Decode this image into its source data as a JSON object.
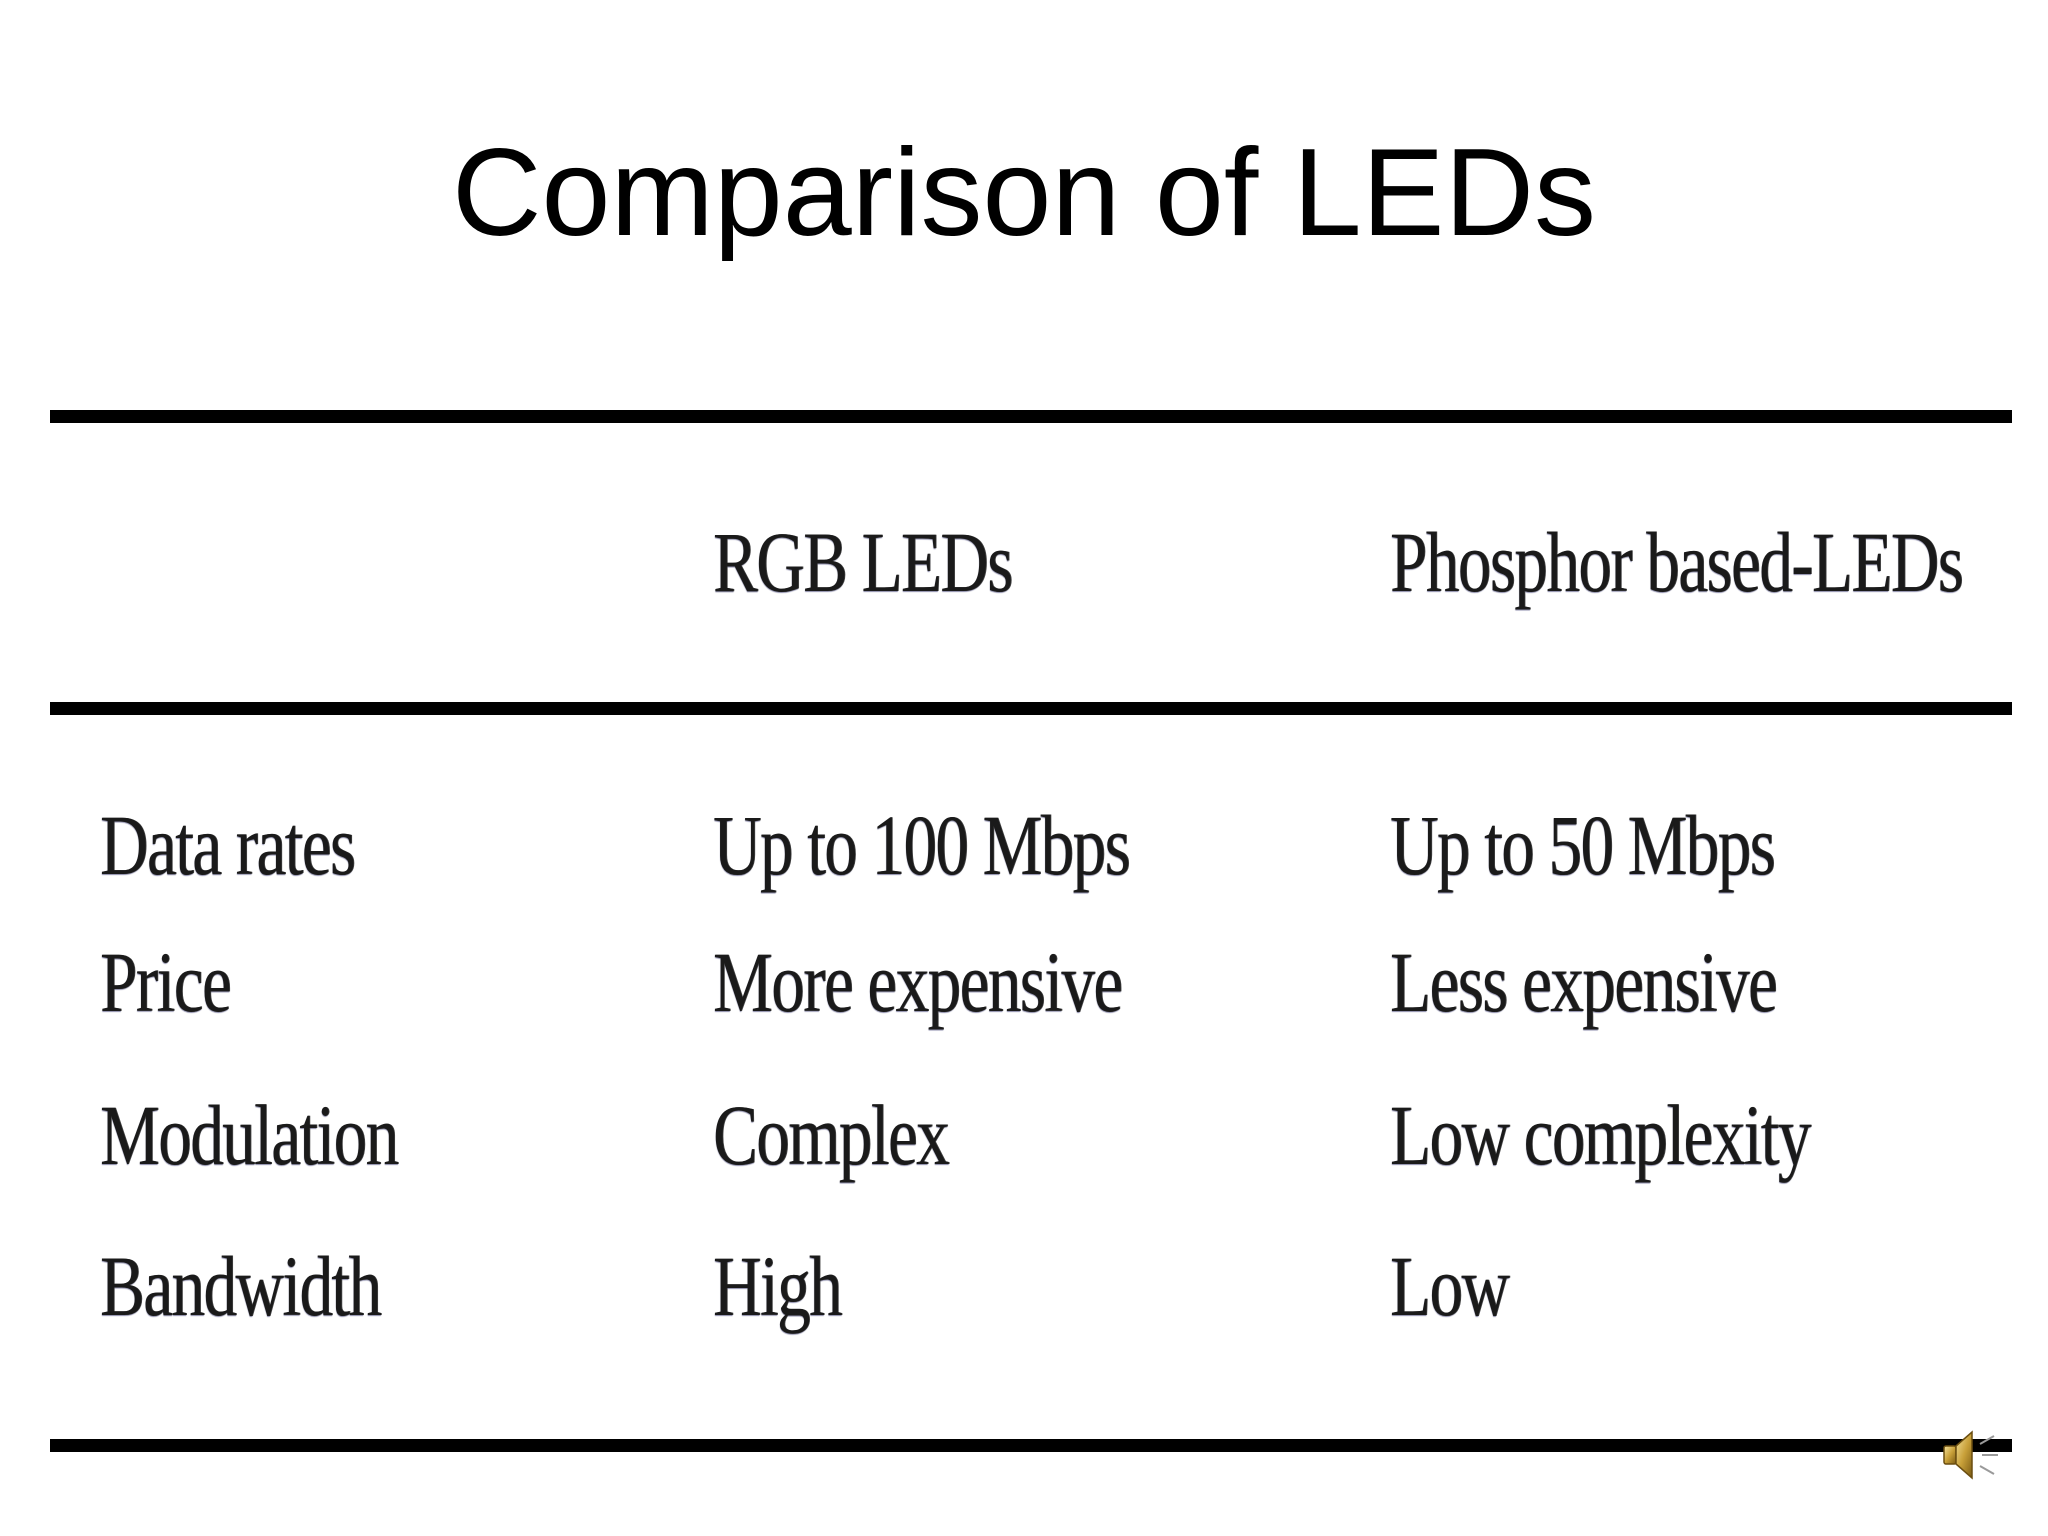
{
  "slide": {
    "title": "Comparison of LEDs"
  },
  "table": {
    "columns": [
      "",
      "RGB LEDs",
      "Phosphor based-LEDs"
    ],
    "rows": [
      [
        "Data rates",
        "Up to 100 Mbps",
        "Up to 50 Mbps"
      ],
      [
        "Price",
        "More expensive",
        "Less expensive"
      ],
      [
        "Modulation",
        "Complex",
        "Low complexity"
      ],
      [
        "Bandwidth",
        "High",
        "Low"
      ]
    ]
  },
  "icons": {
    "audio": "speaker-icon"
  }
}
